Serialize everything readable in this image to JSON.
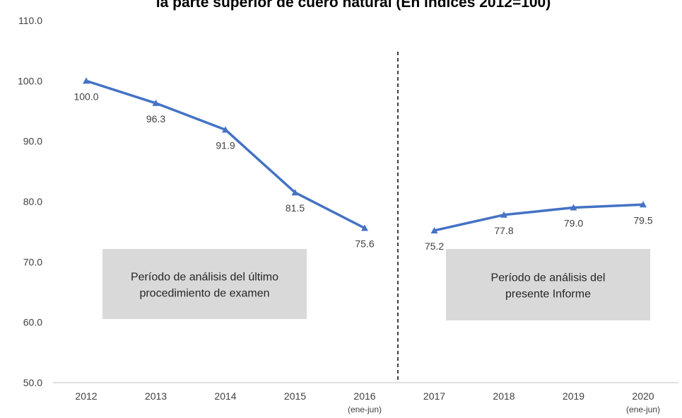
{
  "chart_data": {
    "type": "line",
    "title": "la parte superior de cuero natural (En índices 2012=100)",
    "categories": [
      "2012",
      "2013",
      "2014",
      "2015",
      "2016",
      "2017",
      "2018",
      "2019",
      "2020"
    ],
    "category_sublabels": [
      null,
      null,
      null,
      null,
      "(ene-jun)",
      null,
      null,
      null,
      "(ene-jun)"
    ],
    "series": [
      {
        "color": "#4472c4",
        "values": [
          100.0,
          96.3,
          91.9,
          81.5,
          75.6,
          null,
          null,
          null,
          null
        ],
        "value_labels": [
          "100.0",
          "96.3",
          "91.9",
          "81.5",
          "75.6",
          null,
          null,
          null,
          null
        ]
      },
      {
        "color": "#4472c4",
        "values": [
          null,
          null,
          null,
          null,
          null,
          75.2,
          77.8,
          79.0,
          79.5
        ],
        "value_labels": [
          null,
          null,
          null,
          null,
          null,
          "75.2",
          "77.8",
          "79.0",
          "79.5"
        ]
      }
    ],
    "ylim": [
      50,
      110
    ],
    "yticks": [
      {
        "value": 50,
        "label": "50.0"
      },
      {
        "value": 60,
        "label": "60.0"
      },
      {
        "value": 70,
        "label": "70.0"
      },
      {
        "value": 80,
        "label": "80.0"
      },
      {
        "value": 90,
        "label": "90.0"
      },
      {
        "value": 100,
        "label": "100.0"
      },
      {
        "value": 110,
        "label": "110.0"
      }
    ],
    "grid": false,
    "annotations": [
      {
        "lines": [
          "Período de análisis del último",
          "procedimiento de examen"
        ]
      },
      {
        "lines": [
          "Período de análisis del",
          "presente Informe"
        ]
      }
    ]
  }
}
